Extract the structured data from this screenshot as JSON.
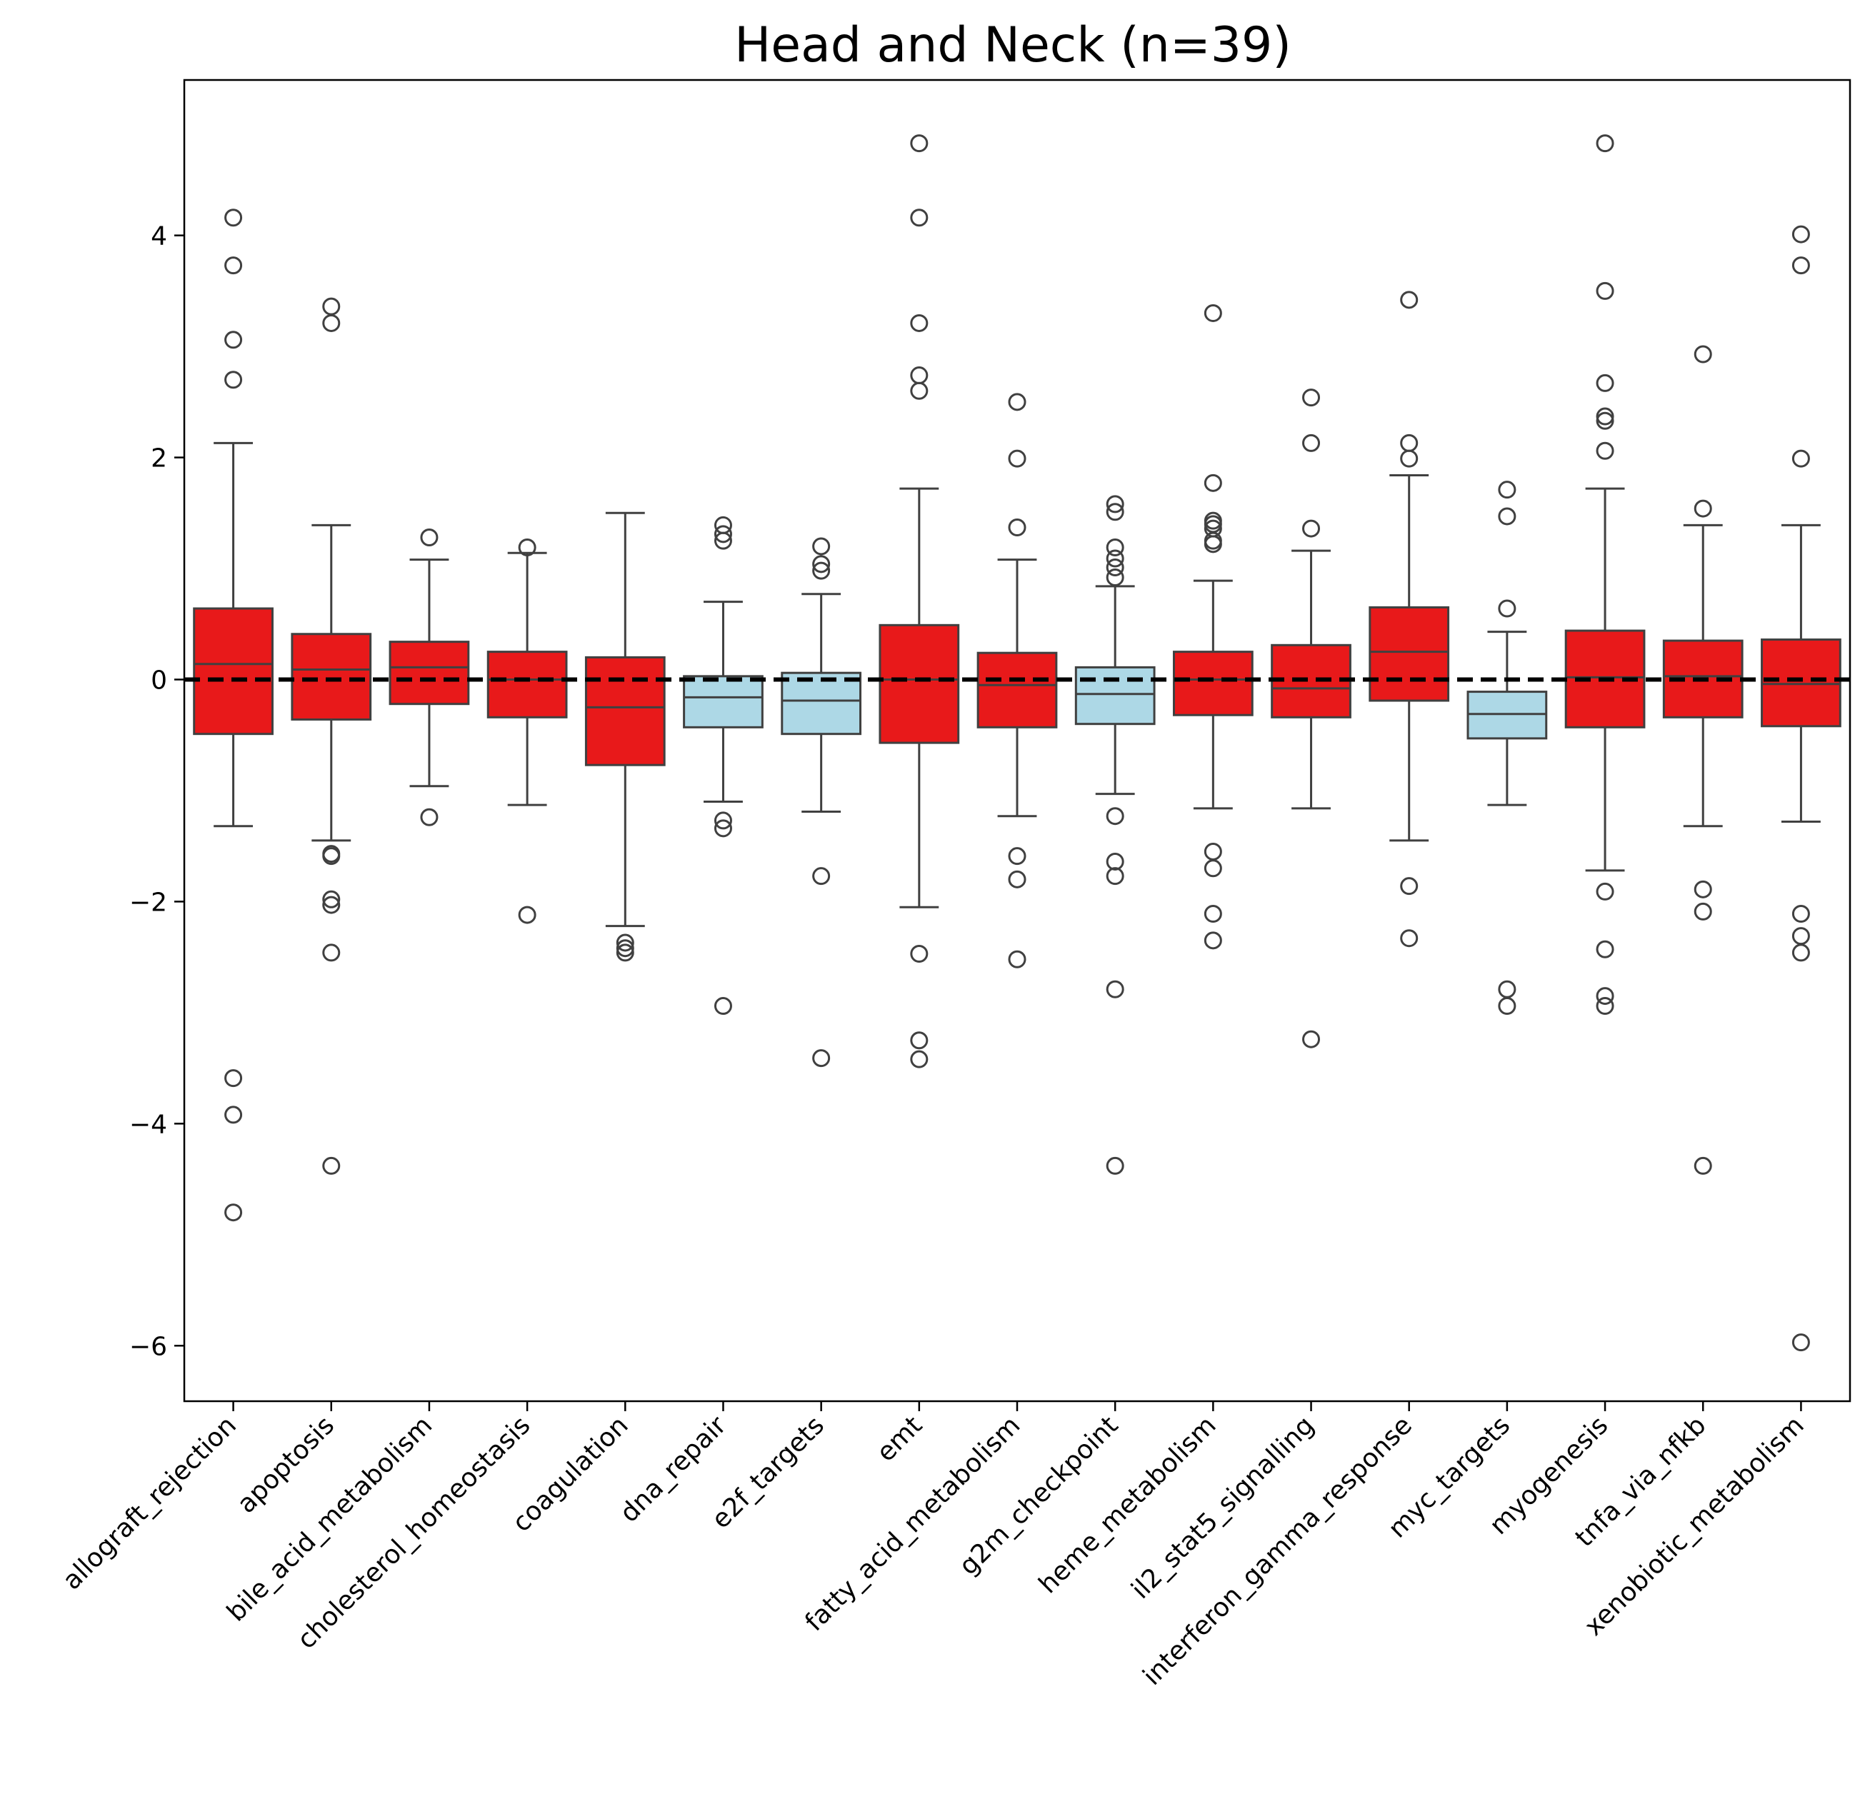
{
  "chart_data": {
    "type": "box",
    "title": "Head and Neck (n=39)",
    "xlabel": "",
    "ylabel": "",
    "ylim": [
      -6.5,
      5.4
    ],
    "yticks": [
      -6,
      -4,
      -2,
      0,
      2,
      4
    ],
    "reference_line": {
      "y": 0,
      "style": "dashed",
      "color": "#000000"
    },
    "colors": {
      "positive": "#e8191a",
      "negative": "#add8e6",
      "line": "#404040"
    },
    "categories": [
      "allograft_rejection",
      "apoptosis",
      "bile_acid_metabolism",
      "cholesterol_homeostasis",
      "coagulation",
      "dna_repair",
      "e2f_targets",
      "emt",
      "fatty_acid_metabolism",
      "g2m_checkpoint",
      "heme_metabolism",
      "il2_stat5_signalling",
      "interferon_gamma_response",
      "myc_targets",
      "myogenesis",
      "tnfa_via_nfkb",
      "xenobiotic_metabolism"
    ],
    "boxes": [
      {
        "fill": "positive",
        "whislo": -1.32,
        "q1": -0.49,
        "med": 0.14,
        "q3": 0.64,
        "whishi": 2.13,
        "fliers": [
          4.16,
          3.73,
          3.06,
          2.7,
          -3.59,
          -3.92,
          -4.8
        ]
      },
      {
        "fill": "positive",
        "whislo": -1.45,
        "q1": -0.36,
        "med": 0.09,
        "q3": 0.41,
        "whishi": 1.39,
        "fliers": [
          3.36,
          3.21,
          -1.57,
          -1.59,
          -1.98,
          -2.03,
          -2.46,
          -4.38
        ]
      },
      {
        "fill": "positive",
        "whislo": -0.96,
        "q1": -0.22,
        "med": 0.11,
        "q3": 0.34,
        "whishi": 1.08,
        "fliers": [
          1.28,
          -1.24
        ]
      },
      {
        "fill": "positive",
        "whislo": -1.13,
        "q1": -0.34,
        "med": 0.0,
        "q3": 0.25,
        "whishi": 1.14,
        "fliers": [
          1.19,
          -2.12
        ]
      },
      {
        "fill": "positive",
        "whislo": -2.22,
        "q1": -0.77,
        "med": -0.25,
        "q3": 0.2,
        "whishi": 1.5,
        "fliers": [
          -2.37,
          -2.42,
          -2.46
        ]
      },
      {
        "fill": "negative",
        "whislo": -1.1,
        "q1": -0.43,
        "med": -0.16,
        "q3": 0.03,
        "whishi": 0.7,
        "fliers": [
          1.39,
          1.31,
          1.25,
          -1.27,
          -1.34,
          -2.94
        ]
      },
      {
        "fill": "negative",
        "whislo": -1.19,
        "q1": -0.49,
        "med": -0.19,
        "q3": 0.06,
        "whishi": 0.77,
        "fliers": [
          1.2,
          1.04,
          0.98,
          -1.77,
          -3.41
        ]
      },
      {
        "fill": "positive",
        "whislo": -2.05,
        "q1": -0.57,
        "med": 0.0,
        "q3": 0.49,
        "whishi": 1.72,
        "fliers": [
          4.83,
          4.16,
          3.21,
          2.74,
          2.6,
          -2.47,
          -3.25,
          -3.42
        ]
      },
      {
        "fill": "positive",
        "whislo": -1.23,
        "q1": -0.43,
        "med": -0.05,
        "q3": 0.24,
        "whishi": 1.08,
        "fliers": [
          2.5,
          1.99,
          1.37,
          -1.59,
          -1.8,
          -2.52
        ]
      },
      {
        "fill": "negative",
        "whislo": -1.03,
        "q1": -0.4,
        "med": -0.13,
        "q3": 0.11,
        "whishi": 0.84,
        "fliers": [
          1.58,
          1.51,
          1.19,
          1.09,
          1.01,
          0.92,
          -1.23,
          -1.64,
          -1.77,
          -2.79,
          -4.38
        ]
      },
      {
        "fill": "positive",
        "whislo": -1.16,
        "q1": -0.32,
        "med": 0.0,
        "q3": 0.25,
        "whishi": 0.89,
        "fliers": [
          3.3,
          1.77,
          1.43,
          1.4,
          1.36,
          1.25,
          1.22,
          -1.55,
          -1.7,
          -2.11,
          -2.35
        ]
      },
      {
        "fill": "positive",
        "whislo": -1.16,
        "q1": -0.34,
        "med": -0.08,
        "q3": 0.31,
        "whishi": 1.16,
        "fliers": [
          2.54,
          2.13,
          1.36,
          -3.24
        ]
      },
      {
        "fill": "positive",
        "whislo": -1.45,
        "q1": -0.19,
        "med": 0.25,
        "q3": 0.65,
        "whishi": 1.84,
        "fliers": [
          3.42,
          2.13,
          1.99,
          -1.86,
          -2.33
        ]
      },
      {
        "fill": "negative",
        "whislo": -1.13,
        "q1": -0.53,
        "med": -0.31,
        "q3": -0.11,
        "whishi": 0.43,
        "fliers": [
          1.71,
          1.47,
          0.64,
          -2.79,
          -2.94
        ]
      },
      {
        "fill": "positive",
        "whislo": -1.72,
        "q1": -0.43,
        "med": 0.02,
        "q3": 0.44,
        "whishi": 1.72,
        "fliers": [
          4.83,
          3.5,
          2.67,
          2.37,
          2.33,
          2.06,
          -1.91,
          -2.43,
          -2.85,
          -2.94
        ]
      },
      {
        "fill": "positive",
        "whislo": -1.32,
        "q1": -0.34,
        "med": 0.03,
        "q3": 0.35,
        "whishi": 1.39,
        "fliers": [
          2.93,
          1.54,
          -1.89,
          -2.09,
          -4.38
        ]
      },
      {
        "fill": "positive",
        "whislo": -1.28,
        "q1": -0.42,
        "med": -0.04,
        "q3": 0.36,
        "whishi": 1.39,
        "fliers": [
          4.01,
          3.73,
          1.99,
          -2.11,
          -2.31,
          -2.46,
          -5.97
        ]
      }
    ]
  }
}
